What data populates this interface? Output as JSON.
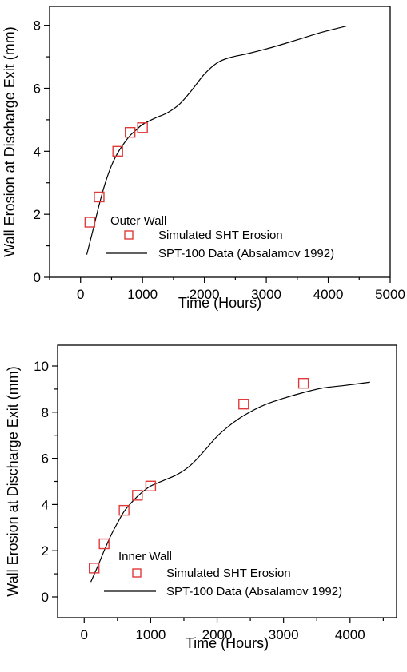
{
  "chart_data": [
    {
      "type": "scatter",
      "panel_label": "Outer Wall",
      "xlabel": "Time (Hours)",
      "ylabel": "Wall Erosion at Discharge Exit (mm)",
      "xlim": [
        -500,
        5000
      ],
      "ylim": [
        0,
        8.6
      ],
      "x_ticks": [
        0,
        1000,
        2000,
        3000,
        4000,
        5000
      ],
      "y_ticks": [
        0,
        2,
        4,
        6,
        8
      ],
      "grid": false,
      "legend_position": "lower-left",
      "series": [
        {
          "name": "Simulated SHT Erosion",
          "kind": "markers",
          "marker": "open-square",
          "color": "#e03a3a",
          "x": [
            150,
            300,
            600,
            800,
            1000
          ],
          "y": [
            1.75,
            2.55,
            4.0,
            4.6,
            4.75
          ]
        },
        {
          "name": "SPT-100 Data (Absalamov 1992)",
          "kind": "line",
          "color": "#000000",
          "x": [
            100,
            200,
            300,
            400,
            500,
            600,
            700,
            800,
            900,
            1000,
            1200,
            1400,
            1600,
            1800,
            2000,
            2200,
            2400,
            2700,
            3000,
            3300,
            3600,
            3900,
            4300
          ],
          "y": [
            0.72,
            1.5,
            2.3,
            3.0,
            3.55,
            3.95,
            4.25,
            4.5,
            4.68,
            4.85,
            5.05,
            5.22,
            5.5,
            5.95,
            6.45,
            6.8,
            6.97,
            7.1,
            7.25,
            7.42,
            7.6,
            7.78,
            7.98
          ]
        }
      ]
    },
    {
      "type": "scatter",
      "panel_label": "Inner Wall",
      "xlabel": "Time (Hours)",
      "ylabel": "Wall Erosion at Discharge Exit (mm)",
      "xlim": [
        -400,
        4700
      ],
      "ylim": [
        -0.9,
        10.9
      ],
      "x_ticks": [
        0,
        1000,
        2000,
        3000,
        4000
      ],
      "y_ticks": [
        0,
        2,
        4,
        6,
        8,
        10
      ],
      "grid": false,
      "legend_position": "lower-left",
      "series": [
        {
          "name": "Simulated SHT Erosion",
          "kind": "markers",
          "marker": "open-square",
          "color": "#e03a3a",
          "x": [
            150,
            300,
            600,
            800,
            1000,
            2400,
            3300
          ],
          "y": [
            1.25,
            2.3,
            3.75,
            4.4,
            4.8,
            8.35,
            9.25
          ]
        },
        {
          "name": "SPT-100 Data (Absalamov 1992)",
          "kind": "line",
          "color": "#000000",
          "x": [
            100,
            200,
            300,
            400,
            500,
            600,
            700,
            800,
            900,
            1000,
            1200,
            1400,
            1600,
            1800,
            2000,
            2200,
            2400,
            2700,
            3000,
            3300,
            3600,
            3900,
            4300
          ],
          "y": [
            0.65,
            1.3,
            2.0,
            2.65,
            3.2,
            3.7,
            4.05,
            4.35,
            4.6,
            4.8,
            5.05,
            5.3,
            5.7,
            6.3,
            6.95,
            7.45,
            7.85,
            8.3,
            8.6,
            8.85,
            9.05,
            9.15,
            9.3
          ]
        }
      ]
    }
  ]
}
